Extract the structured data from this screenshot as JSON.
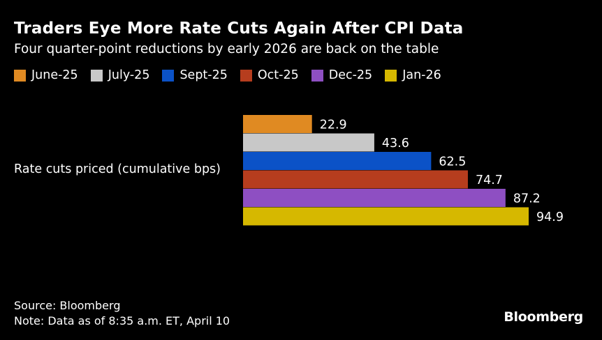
{
  "title": "Traders Eye More Rate Cuts Again After CPI Data",
  "subtitle": "Four quarter-point reductions by early 2026 are back on the table",
  "source": "Source: Bloomberg",
  "note": "Note: Data as of 8:35 a.m. ET, April 10",
  "brand": "Bloomberg",
  "chart_data": {
    "type": "bar",
    "orientation": "horizontal",
    "categories": [
      "Rate cuts priced (cumulative bps)"
    ],
    "series": [
      {
        "name": "June-25",
        "values": [
          22.9
        ],
        "color": "#e08a22"
      },
      {
        "name": "July-25",
        "values": [
          43.6
        ],
        "color": "#c8c8c8"
      },
      {
        "name": "Sept-25",
        "values": [
          62.5
        ],
        "color": "#0b52c7"
      },
      {
        "name": "Oct-25",
        "values": [
          74.7
        ],
        "color": "#b63d1e"
      },
      {
        "name": "Dec-25",
        "values": [
          87.2
        ],
        "color": "#8e4fc2"
      },
      {
        "name": "Jan-26",
        "values": [
          94.9
        ],
        "color": "#d6b800"
      }
    ],
    "data_labels": [
      "22.9",
      "43.6",
      "62.5",
      "74.7",
      "87.2",
      "94.9"
    ],
    "legend_position": "top-left",
    "grid": false,
    "xlim": [
      0,
      100
    ]
  }
}
